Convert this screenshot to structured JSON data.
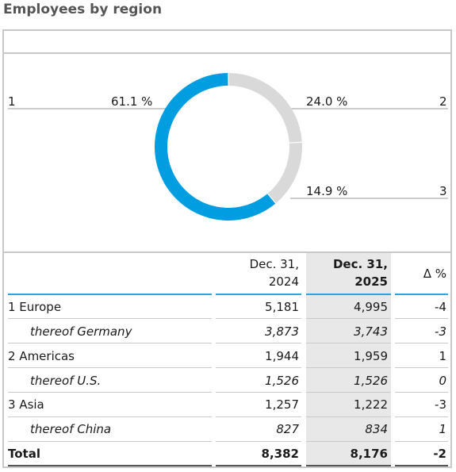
{
  "title": "Employees by region",
  "chart_data": {
    "type": "pie",
    "donut": true,
    "slices": [
      {
        "id": "1",
        "value": 61.1,
        "label": "61.1 %",
        "color": "#009ee0"
      },
      {
        "id": "2",
        "value": 24.0,
        "label": "24.0 %",
        "color": "#d9d9d9"
      },
      {
        "id": "3",
        "value": 14.9,
        "label": "14.9 %",
        "color": "#d9d9d9"
      }
    ]
  },
  "table": {
    "headers": {
      "col2024": [
        "Dec. 31,",
        "2024"
      ],
      "col2025": [
        "Dec. 31,",
        "2025"
      ],
      "delta": "Δ %"
    },
    "rows": [
      {
        "label": "1 Europe",
        "v2024": "5,181",
        "v2025": "4,995",
        "delta": "-4",
        "style": "normal"
      },
      {
        "label": "thereof Germany",
        "v2024": "3,873",
        "v2025": "3,743",
        "delta": "-3",
        "style": "italic"
      },
      {
        "label": "2 Americas",
        "v2024": "1,944",
        "v2025": "1,959",
        "delta": "1",
        "style": "normal"
      },
      {
        "label": "thereof U.S.",
        "v2024": "1,526",
        "v2025": "1,526",
        "delta": "0",
        "style": "italic"
      },
      {
        "label": "3 Asia",
        "v2024": "1,257",
        "v2025": "1,222",
        "delta": "-3",
        "style": "normal"
      },
      {
        "label": "thereof China",
        "v2024": "827",
        "v2025": "834",
        "delta": "1",
        "style": "italic"
      }
    ],
    "total": {
      "label": "Total",
      "v2024": "8,382",
      "v2025": "8,176",
      "delta": "-2"
    }
  }
}
